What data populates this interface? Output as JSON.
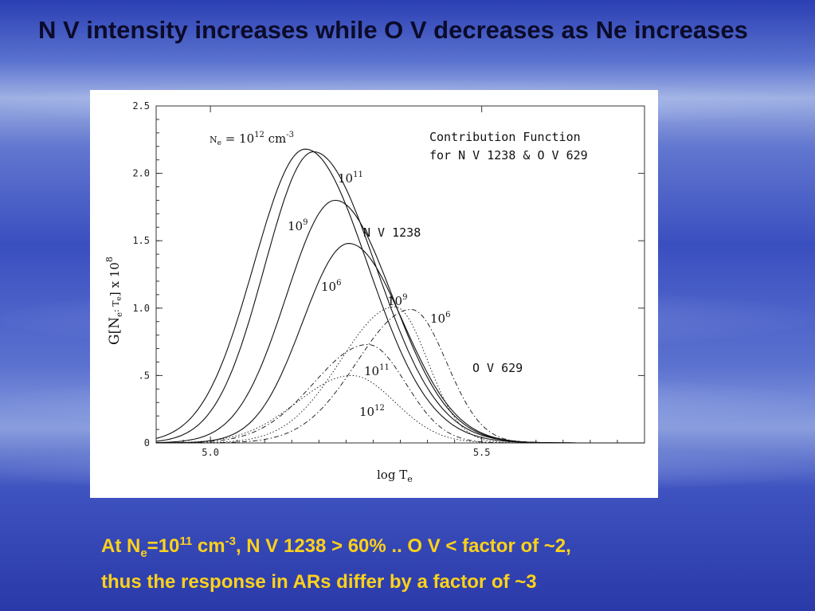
{
  "slide": {
    "title": "N V intensity increases while O V decreases as Ne increases",
    "caption": {
      "line1_prefix": "At N",
      "line1_ne_sub": "e",
      "line1_eq": "=10",
      "line1_exp": "11",
      "line1_unit": " cm",
      "line1_unit_exp": "-3",
      "line1_rest": ", N V 1238 > 60% .. O V < factor of ~2,",
      "line2": "thus the response in ARs differ by a factor of ~3"
    }
  },
  "chart_data": {
    "type": "line",
    "title": "Contribution Function",
    "subtitle": "for N V 1238 & O V 629",
    "xlabel": "log T",
    "xlabel_sub": "e",
    "ylabel": "G[N",
    "ylabel_rest": "e",
    "ylabel_mid": ": T",
    "ylabel_mid_sub": "e",
    "ylabel_end": "] x 10",
    "ylabel_exp": "8",
    "xlim": [
      4.9,
      5.8
    ],
    "ylim": [
      0,
      2.5
    ],
    "x_ticks": [
      5.0,
      5.5
    ],
    "x_tick_labels": [
      "5.0",
      "5.5"
    ],
    "y_ticks": [
      0,
      0.5,
      1.0,
      1.5,
      2.0,
      2.5
    ],
    "y_tick_labels": [
      "0",
      ".5",
      "1.0",
      "1.5",
      "2.0",
      "2.5"
    ],
    "density_label": {
      "prefix": "N",
      "sub": "e",
      "eq": " = 10",
      "exp": "12",
      "unit": " cm",
      "unit_exp": "-3"
    },
    "group_labels": [
      "N V 1238",
      "O V 629"
    ],
    "series": [
      {
        "group": "N V 1238",
        "label_base": "10",
        "label_exp": "12",
        "peak_x": 5.175,
        "peak_y": 2.18,
        "width_left": 0.095,
        "width_right": 0.115,
        "style": "solid"
      },
      {
        "group": "N V 1238",
        "label_base": "10",
        "label_exp": "11",
        "peak_x": 5.19,
        "peak_y": 2.16,
        "width_left": 0.09,
        "width_right": 0.115,
        "style": "solid"
      },
      {
        "group": "N V 1238",
        "label_base": "10",
        "label_exp": "9",
        "peak_x": 5.23,
        "peak_y": 1.8,
        "width_left": 0.09,
        "width_right": 0.105,
        "style": "solid"
      },
      {
        "group": "N V 1238",
        "label_base": "10",
        "label_exp": "6",
        "peak_x": 5.255,
        "peak_y": 1.48,
        "width_left": 0.085,
        "width_right": 0.1,
        "style": "solid"
      },
      {
        "group": "O V 629",
        "label_base": "10",
        "label_exp": "6",
        "peak_x": 5.37,
        "peak_y": 0.99,
        "width_left": 0.1,
        "width_right": 0.065,
        "style": "dashdot"
      },
      {
        "group": "O V 629",
        "label_base": "10",
        "label_exp": "9",
        "peak_x": 5.34,
        "peak_y": 1.01,
        "width_left": 0.1,
        "width_right": 0.06,
        "style": "dotted"
      },
      {
        "group": "O V 629",
        "label_base": "10",
        "label_exp": "11",
        "peak_x": 5.29,
        "peak_y": 0.73,
        "width_left": 0.1,
        "width_right": 0.07,
        "style": "dashdot"
      },
      {
        "group": "O V 629",
        "label_base": "10",
        "label_exp": "12",
        "peak_x": 5.26,
        "peak_y": 0.5,
        "width_left": 0.1,
        "width_right": 0.08,
        "style": "dotted"
      }
    ]
  }
}
